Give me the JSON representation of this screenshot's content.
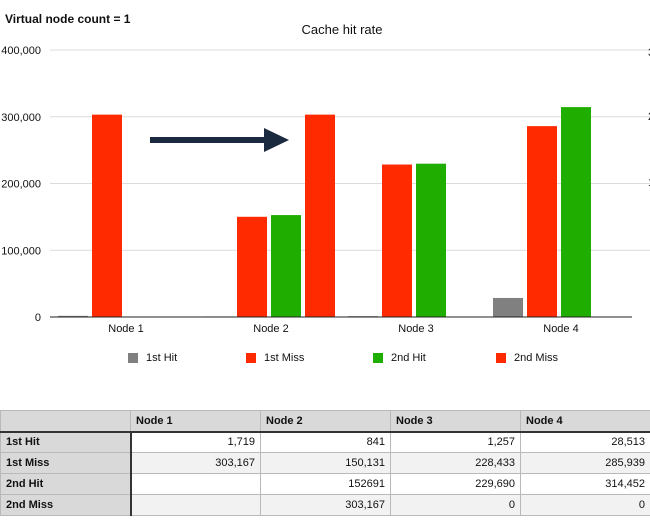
{
  "page": {
    "heading": "Virtual node count = 1"
  },
  "chart_data": {
    "type": "bar",
    "title": "Cache hit rate",
    "categories": [
      "Node 1",
      "Node 2",
      "Node 3",
      "Node 4"
    ],
    "series": [
      {
        "name": "1st Hit",
        "color": "#808080",
        "values": [
          1719,
          841,
          1257,
          28513
        ]
      },
      {
        "name": "1st Miss",
        "color": "#ff2a00",
        "values": [
          303167,
          150131,
          228433,
          285939
        ]
      },
      {
        "name": "2nd Hit",
        "color": "#1fad00",
        "values": [
          null,
          152691,
          229690,
          314452
        ]
      },
      {
        "name": "2nd Miss",
        "color": "#ff2a00",
        "values": [
          null,
          303167,
          0,
          0
        ]
      }
    ],
    "ylim": [
      0,
      400000
    ],
    "yticks": [
      "0",
      "100,000",
      "200,000",
      "300,000",
      "400,000"
    ],
    "ytick_values": [
      0,
      100000,
      200000,
      300000,
      400000
    ],
    "grid": true,
    "legend_position": "bottom",
    "annotation": {
      "type": "arrow",
      "color": "#1c2a40",
      "from": "Node 1",
      "to": "Node 2"
    }
  },
  "table": {
    "headers": [
      "",
      "Node 1",
      "Node 2",
      "Node 3",
      "Node 4"
    ],
    "rows": [
      {
        "label": "1st Hit",
        "cells": [
          "1,719",
          "841",
          "1,257",
          "28,513"
        ]
      },
      {
        "label": "1st Miss",
        "cells": [
          "303,167",
          "150,131",
          "228,433",
          "285,939"
        ]
      },
      {
        "label": "2nd Hit",
        "cells": [
          "",
          "152691",
          "229,690",
          "314,452"
        ]
      },
      {
        "label": "2nd Miss",
        "cells": [
          "",
          "303,167",
          "0",
          "0"
        ]
      }
    ]
  }
}
